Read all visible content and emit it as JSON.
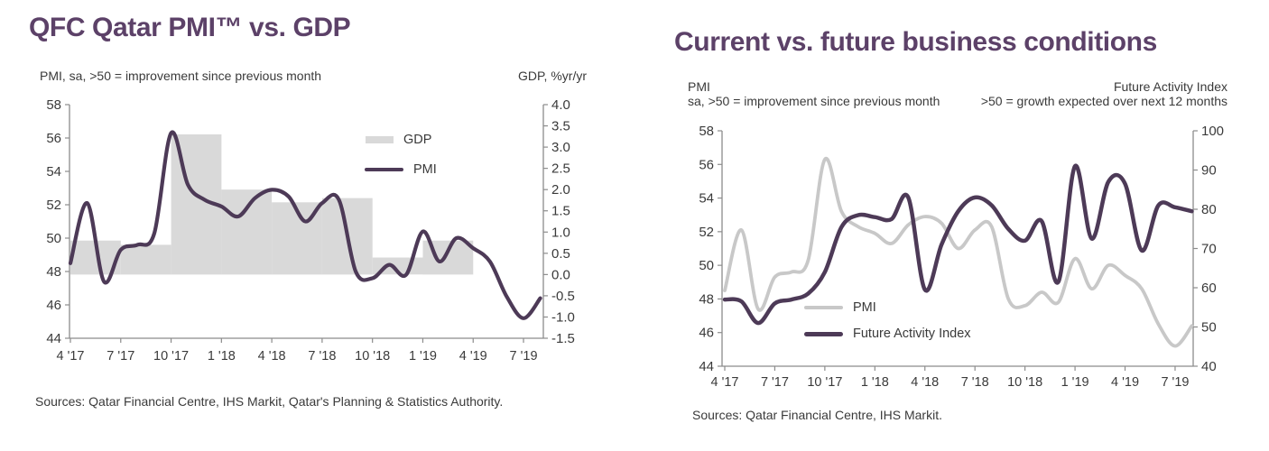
{
  "colors": {
    "title_purple": "#5c4168",
    "line_purple": "#4d3a57",
    "bar_gray": "#d9d9d9",
    "line_gray": "#c8c8c8",
    "axis_gray": "#8c8c8c",
    "text_dark": "#3a3a3a"
  },
  "chart_data": [
    {
      "type": "combo-bar-line",
      "title": "QFC Qatar PMI™ vs. GDP",
      "subtitle_left": "PMI, sa, >50 = improvement since previous month",
      "subtitle_right": "GDP, %yr/yr",
      "x_tick_labels": [
        "4 '17",
        "7 '17",
        "10 '17",
        "1 '18",
        "4 '18",
        "7 '18",
        "10 '18",
        "1 '19",
        "4 '19",
        "7 '19"
      ],
      "x_start_month": "2017-04",
      "x_end_month": "2019-08",
      "x_frequency": "monthly",
      "left_axis": {
        "min": 44,
        "max": 58,
        "tick_step": 2,
        "tick_labels": [
          "58",
          "56",
          "54",
          "52",
          "50",
          "48",
          "46",
          "44"
        ]
      },
      "right_axis": {
        "min": -1.5,
        "max": 4.0,
        "tick_step": 0.5,
        "tick_labels": [
          "4.0",
          "3.5",
          "3.0",
          "2.5",
          "2.0",
          "1.5",
          "1.0",
          "0.5",
          "0.0",
          "-0.5",
          "-1.0",
          "-1.5"
        ]
      },
      "legend": [
        {
          "label": "GDP",
          "swatch": "bar",
          "color": "#d9d9d9"
        },
        {
          "label": "PMI",
          "swatch": "line",
          "color": "#4d3a57"
        }
      ],
      "series": [
        {
          "name": "GDP",
          "kind": "bar",
          "axis": "right",
          "unit": "%yr/yr",
          "color": "#d9d9d9",
          "quarters": [
            "2017-Q2",
            "2017-Q3",
            "2017-Q4",
            "2018-Q1",
            "2018-Q2",
            "2018-Q3",
            "2018-Q4",
            "2019-Q1"
          ],
          "values": [
            0.8,
            0.7,
            3.3,
            2.0,
            1.7,
            1.8,
            0.4,
            0.8
          ]
        },
        {
          "name": "PMI",
          "kind": "line",
          "axis": "left",
          "color": "#4d3a57",
          "width": 4.2,
          "values": [
            48.5,
            52.1,
            47.4,
            49.3,
            49.6,
            50.3,
            56.3,
            53.2,
            52.3,
            51.9,
            51.3,
            52.4,
            52.9,
            52.5,
            51.0,
            52.1,
            52.3,
            48.0,
            47.6,
            48.4,
            47.8,
            50.4,
            48.6,
            50.0,
            49.4,
            48.6,
            46.5,
            45.2,
            46.4
          ]
        }
      ],
      "source": "Sources: Qatar Financial Centre, IHS Markit, Qatar's Planning & Statistics Authority."
    },
    {
      "type": "line",
      "title": "Current vs. future business conditions",
      "subtitle_left_line1": "PMI",
      "subtitle_left_line2": "sa, >50 = improvement since previous month",
      "subtitle_right_line1": "Future Activity Index",
      "subtitle_right_line2": ">50 = growth expected over next 12 months",
      "x_tick_labels": [
        "4 '17",
        "7 '17",
        "10 '17",
        "1 '18",
        "4 '18",
        "7 '18",
        "10 '18",
        "1 '19",
        "4 '19",
        "7 '19"
      ],
      "x_start_month": "2017-04",
      "x_end_month": "2019-08",
      "x_frequency": "monthly",
      "left_axis": {
        "min": 44,
        "max": 58,
        "tick_step": 2,
        "tick_labels": [
          "58",
          "56",
          "54",
          "52",
          "50",
          "48",
          "46",
          "44"
        ]
      },
      "right_axis": {
        "min": 40,
        "max": 100,
        "tick_step": 10,
        "tick_labels": [
          "100",
          "90",
          "80",
          "70",
          "60",
          "50",
          "40"
        ]
      },
      "legend": [
        {
          "label": "PMI",
          "swatch": "line",
          "color": "#c8c8c8"
        },
        {
          "label": "Future Activity Index",
          "swatch": "line",
          "color": "#4d3a57"
        }
      ],
      "series": [
        {
          "name": "PMI",
          "kind": "line",
          "axis": "left",
          "color": "#c8c8c8",
          "width": 3.8,
          "values": [
            48.5,
            52.1,
            47.4,
            49.3,
            49.6,
            50.3,
            56.3,
            53.2,
            52.3,
            51.9,
            51.3,
            52.4,
            52.9,
            52.5,
            51.0,
            52.1,
            52.3,
            48.0,
            47.6,
            48.4,
            47.8,
            50.4,
            48.6,
            50.0,
            49.4,
            48.6,
            46.5,
            45.2,
            46.4
          ]
        },
        {
          "name": "Future Activity Index",
          "kind": "line",
          "axis": "right",
          "color": "#4d3a57",
          "width": 4.5,
          "values": [
            57,
            56.5,
            51,
            56,
            57,
            58.5,
            64,
            75.5,
            78.5,
            78,
            77.5,
            83,
            59.5,
            71,
            79.5,
            83,
            81,
            75,
            72,
            77,
            61.5,
            91,
            72.5,
            87,
            86.5,
            69.5,
            81,
            80.5,
            79.5
          ]
        }
      ],
      "source": "Sources: Qatar Financial Centre, IHS Markit."
    }
  ]
}
